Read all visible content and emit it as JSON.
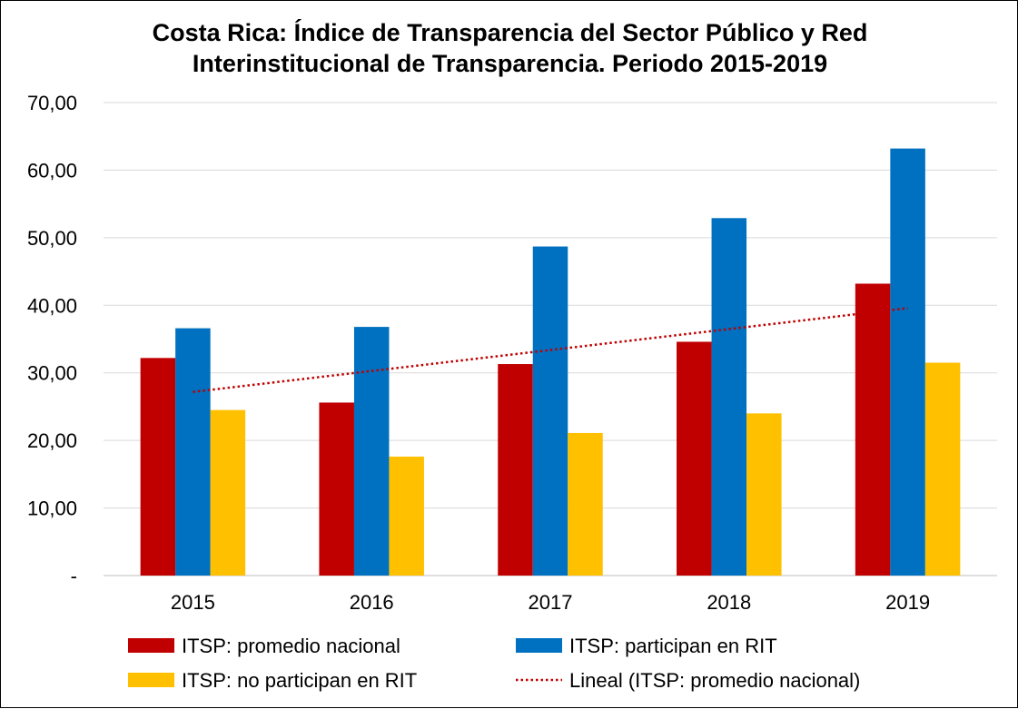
{
  "chart_data": {
    "type": "bar",
    "title": "Costa Rica: Índice de Transparencia del Sector Público y Red\nInterinstitucional de Transparencia. Periodo 2015-2019",
    "xlabel": "",
    "ylabel": "",
    "categories": [
      "2015",
      "2016",
      "2017",
      "2018",
      "2019"
    ],
    "series": [
      {
        "name": "ITSP: promedio nacional",
        "values": [
          32.2,
          25.6,
          31.3,
          34.6,
          43.2
        ],
        "color": "#C00000"
      },
      {
        "name": "ITSP: participan en RIT",
        "values": [
          36.6,
          36.8,
          48.7,
          52.9,
          63.2
        ],
        "color": "#0070C0"
      },
      {
        "name": "ITSP: no participan en RIT",
        "values": [
          24.5,
          17.6,
          21.1,
          24.0,
          31.5
        ],
        "color": "#FFC000"
      }
    ],
    "trendline": {
      "name": "Lineal (ITSP: promedio nacional)",
      "of_series": "ITSP: promedio nacional",
      "kind": "linear",
      "style": "dotted",
      "color": "#C00000"
    },
    "ylim": [
      0,
      70
    ],
    "yticks": [
      0,
      10,
      20,
      30,
      40,
      50,
      60,
      70
    ],
    "ytick_labels": [
      "-",
      "10,00",
      "20,00",
      "30,00",
      "40,00",
      "50,00",
      "60,00",
      "70,00"
    ],
    "grid": true,
    "legend_position": "bottom"
  }
}
